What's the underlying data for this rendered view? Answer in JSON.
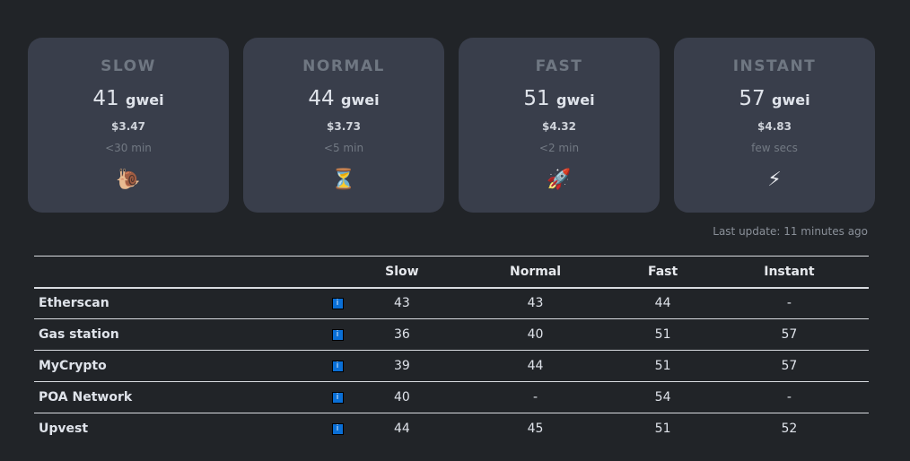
{
  "cards": [
    {
      "title": "SLOW",
      "value": "41",
      "unit": "gwei",
      "price": "$3.47",
      "time": "<30 min",
      "icon": "🐌",
      "icon_name": "snail"
    },
    {
      "title": "NORMAL",
      "value": "44",
      "unit": "gwei",
      "price": "$3.73",
      "time": "<5 min",
      "icon": "⏳",
      "icon_name": "hourglass"
    },
    {
      "title": "FAST",
      "value": "51",
      "unit": "gwei",
      "price": "$4.32",
      "time": "<2 min",
      "icon": "🚀",
      "icon_name": "rocket"
    },
    {
      "title": "INSTANT",
      "value": "57",
      "unit": "gwei",
      "price": "$4.83",
      "time": "few secs",
      "icon": "⚡",
      "icon_name": "lightning"
    }
  ],
  "last_update": "Last update: 11 minutes ago",
  "table": {
    "headers": [
      "",
      "",
      "Slow",
      "Normal",
      "Fast",
      "Instant"
    ],
    "info_label": "i",
    "rows": [
      {
        "name": "Etherscan",
        "slow": "43",
        "normal": "43",
        "fast": "44",
        "instant": "-"
      },
      {
        "name": "Gas station",
        "slow": "36",
        "normal": "40",
        "fast": "51",
        "instant": "57"
      },
      {
        "name": "MyCrypto",
        "slow": "39",
        "normal": "44",
        "fast": "51",
        "instant": "57"
      },
      {
        "name": "POA Network",
        "slow": "40",
        "normal": "-",
        "fast": "54",
        "instant": "-"
      },
      {
        "name": "Upvest",
        "slow": "44",
        "normal": "45",
        "fast": "51",
        "instant": "52"
      }
    ]
  },
  "colors": {
    "background": "#212428",
    "card": "#393e4b",
    "info": "#0a6fd6"
  }
}
